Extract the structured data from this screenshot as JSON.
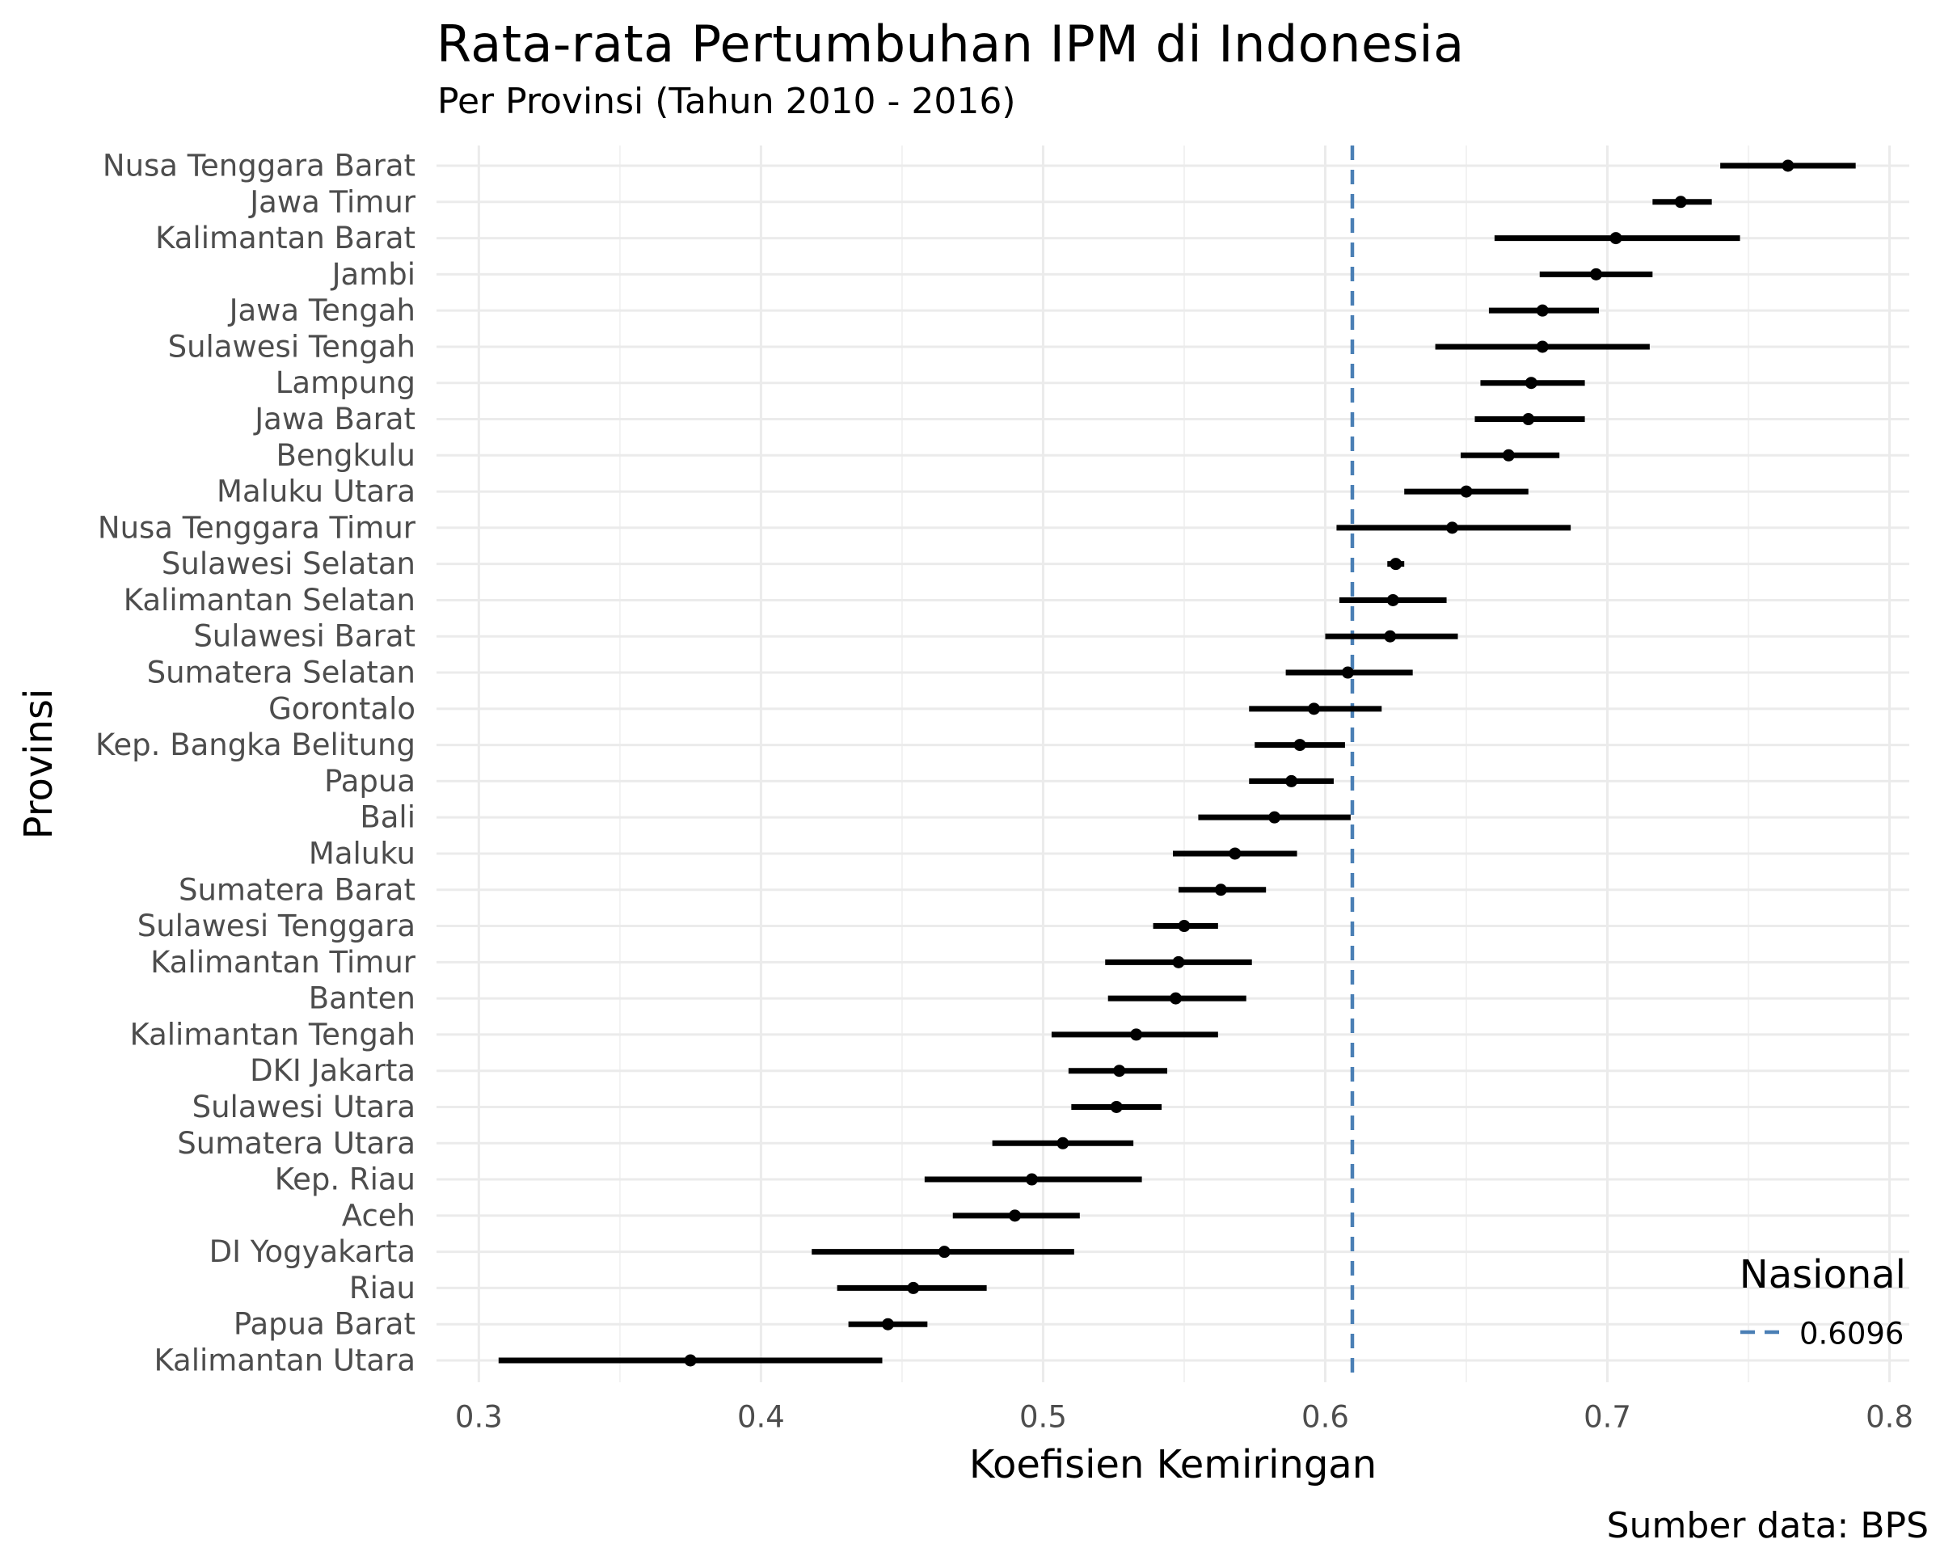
{
  "chart_data": {
    "type": "scatter",
    "title": "Rata-rata Pertumbuhan IPM di Indonesia",
    "subtitle": "Per Provinsi (Tahun 2010 - 2016)",
    "caption": "Sumber data: BPS",
    "xlabel": "Koefisien Kemiringan",
    "ylabel": "Provinsi",
    "xlim": [
      0.285,
      0.807
    ],
    "xticks": [
      0.3,
      0.4,
      0.5,
      0.6,
      0.7,
      0.8
    ],
    "xtick_labels": [
      "0.3",
      "0.4",
      "0.5",
      "0.6",
      "0.7",
      "0.8"
    ],
    "grid": true,
    "reference_line": {
      "value": 0.6096,
      "label": "0.6096",
      "color": "#4a7fb5",
      "style": "dashed"
    },
    "legend": {
      "title": "Nasional",
      "position": "bottom-right"
    },
    "point_color": "#000000",
    "rows": [
      {
        "name": "Nusa Tenggara Barat",
        "estimate": 0.764,
        "low": 0.74,
        "high": 0.788
      },
      {
        "name": "Jawa Timur",
        "estimate": 0.726,
        "low": 0.716,
        "high": 0.737
      },
      {
        "name": "Kalimantan Barat",
        "estimate": 0.703,
        "low": 0.66,
        "high": 0.747
      },
      {
        "name": "Jambi",
        "estimate": 0.696,
        "low": 0.676,
        "high": 0.716
      },
      {
        "name": "Jawa Tengah",
        "estimate": 0.677,
        "low": 0.658,
        "high": 0.697
      },
      {
        "name": "Sulawesi Tengah",
        "estimate": 0.677,
        "low": 0.639,
        "high": 0.715
      },
      {
        "name": "Lampung",
        "estimate": 0.673,
        "low": 0.655,
        "high": 0.692
      },
      {
        "name": "Jawa Barat",
        "estimate": 0.672,
        "low": 0.653,
        "high": 0.692
      },
      {
        "name": "Bengkulu",
        "estimate": 0.665,
        "low": 0.648,
        "high": 0.683
      },
      {
        "name": "Maluku Utara",
        "estimate": 0.65,
        "low": 0.628,
        "high": 0.672
      },
      {
        "name": "Nusa Tenggara Timur",
        "estimate": 0.645,
        "low": 0.604,
        "high": 0.687
      },
      {
        "name": "Sulawesi Selatan",
        "estimate": 0.625,
        "low": 0.622,
        "high": 0.628
      },
      {
        "name": "Kalimantan Selatan",
        "estimate": 0.624,
        "low": 0.605,
        "high": 0.643
      },
      {
        "name": "Sulawesi Barat",
        "estimate": 0.623,
        "low": 0.6,
        "high": 0.647
      },
      {
        "name": "Sumatera Selatan",
        "estimate": 0.608,
        "low": 0.586,
        "high": 0.631
      },
      {
        "name": "Gorontalo",
        "estimate": 0.596,
        "low": 0.573,
        "high": 0.62
      },
      {
        "name": "Kep. Bangka Belitung",
        "estimate": 0.591,
        "low": 0.575,
        "high": 0.607
      },
      {
        "name": "Papua",
        "estimate": 0.588,
        "low": 0.573,
        "high": 0.603
      },
      {
        "name": "Bali",
        "estimate": 0.582,
        "low": 0.555,
        "high": 0.609
      },
      {
        "name": "Maluku",
        "estimate": 0.568,
        "low": 0.546,
        "high": 0.59
      },
      {
        "name": "Sumatera Barat",
        "estimate": 0.563,
        "low": 0.548,
        "high": 0.579
      },
      {
        "name": "Sulawesi Tenggara",
        "estimate": 0.55,
        "low": 0.539,
        "high": 0.562
      },
      {
        "name": "Kalimantan Timur",
        "estimate": 0.548,
        "low": 0.522,
        "high": 0.574
      },
      {
        "name": "Banten",
        "estimate": 0.547,
        "low": 0.523,
        "high": 0.572
      },
      {
        "name": "Kalimantan Tengah",
        "estimate": 0.533,
        "low": 0.503,
        "high": 0.562
      },
      {
        "name": "DKI Jakarta",
        "estimate": 0.527,
        "low": 0.509,
        "high": 0.544
      },
      {
        "name": "Sulawesi Utara",
        "estimate": 0.526,
        "low": 0.51,
        "high": 0.542
      },
      {
        "name": "Sumatera Utara",
        "estimate": 0.507,
        "low": 0.482,
        "high": 0.532
      },
      {
        "name": "Kep. Riau",
        "estimate": 0.496,
        "low": 0.458,
        "high": 0.535
      },
      {
        "name": "Aceh",
        "estimate": 0.49,
        "low": 0.468,
        "high": 0.513
      },
      {
        "name": "DI Yogyakarta",
        "estimate": 0.465,
        "low": 0.418,
        "high": 0.511
      },
      {
        "name": "Riau",
        "estimate": 0.454,
        "low": 0.427,
        "high": 0.48
      },
      {
        "name": "Papua Barat",
        "estimate": 0.445,
        "low": 0.431,
        "high": 0.459
      },
      {
        "name": "Kalimantan Utara",
        "estimate": 0.375,
        "low": 0.307,
        "high": 0.443
      }
    ]
  }
}
